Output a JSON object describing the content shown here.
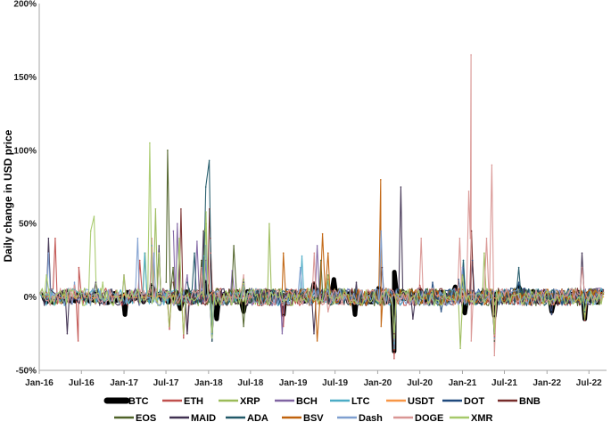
{
  "chart_data": {
    "type": "line",
    "title": "",
    "xlabel": "",
    "ylabel": "Daily change in USD price",
    "y_unit": "percent",
    "ylim": [
      -50,
      200
    ],
    "yticks": [
      -50,
      0,
      50,
      100,
      150,
      200
    ],
    "ytick_labels": [
      "-50%",
      "0%",
      "50%",
      "100%",
      "150%",
      "200%"
    ],
    "xlim": [
      "2016-01-01",
      "2022-09-15"
    ],
    "xticks": [
      "2016-01-01",
      "2016-07-01",
      "2017-01-01",
      "2017-07-01",
      "2018-01-01",
      "2018-07-01",
      "2019-01-01",
      "2019-07-01",
      "2020-01-01",
      "2020-07-01",
      "2021-01-01",
      "2021-07-01",
      "2022-01-01",
      "2022-07-01"
    ],
    "xtick_labels": [
      "Jan-16",
      "Jul-16",
      "Jan-17",
      "Jul-17",
      "Jan-18",
      "Jul-18",
      "Jan-19",
      "Jul-19",
      "Jan-20",
      "Jul-20",
      "Jan-21",
      "Jul-21",
      "Jan-22",
      "Jul-22"
    ],
    "grid": false,
    "legend_position": "bottom",
    "series": [
      {
        "name": "BTC",
        "color": "#000000",
        "x": [
          "2016-01-15",
          "2016-05-01",
          "2016-09-01",
          "2017-01-05",
          "2017-05-01",
          "2017-09-01",
          "2017-12-20",
          "2018-02-05",
          "2018-06-01",
          "2018-11-20",
          "2019-04-01",
          "2019-06-26",
          "2019-09-25",
          "2020-01-05",
          "2020-03-12",
          "2020-03-13",
          "2020-07-01",
          "2020-12-01",
          "2021-01-11",
          "2021-05-19",
          "2021-09-01",
          "2022-01-21",
          "2022-06-13",
          "2022-09-01"
        ],
        "values": [
          2,
          4,
          3,
          -12,
          8,
          -8,
          10,
          -15,
          -10,
          -12,
          9,
          12,
          -12,
          6,
          -37,
          17,
          5,
          7,
          -11,
          -13,
          7,
          -10,
          -15,
          4
        ]
      },
      {
        "name": "ETH",
        "color": "#c0504d",
        "x": [
          "2016-02-01",
          "2016-03-10",
          "2016-06-17",
          "2016-06-20",
          "2016-11-01",
          "2017-03-10",
          "2017-06-01",
          "2017-07-16",
          "2017-09-15",
          "2018-01-10",
          "2018-06-01",
          "2018-11-20",
          "2019-06-01",
          "2020-03-12",
          "2020-07-01",
          "2021-01-05",
          "2021-05-19",
          "2022-01-21",
          "2022-06-13",
          "2022-09-01"
        ],
        "values": [
          3,
          40,
          -30,
          20,
          5,
          25,
          30,
          -22,
          -28,
          30,
          10,
          -20,
          12,
          -42,
          8,
          20,
          -27,
          -12,
          -16,
          4
        ]
      },
      {
        "name": "XRP",
        "color": "#9bbb59",
        "x": [
          "2016-01-10",
          "2016-06-01",
          "2017-01-05",
          "2017-04-02",
          "2017-05-17",
          "2017-07-15",
          "2017-12-14",
          "2017-12-21",
          "2018-01-16",
          "2018-09-20",
          "2019-01-01",
          "2020-03-12",
          "2020-09-01",
          "2020-12-23",
          "2021-04-05",
          "2021-09-01",
          "2022-06-13",
          "2022-09-01"
        ],
        "values": [
          2,
          5,
          3,
          30,
          60,
          -20,
          45,
          50,
          -30,
          50,
          4,
          -30,
          5,
          -35,
          30,
          5,
          -15,
          3
        ]
      },
      {
        "name": "BCH",
        "color": "#8064a2",
        "x": [
          "2017-08-02",
          "2017-08-19",
          "2017-10-01",
          "2017-11-12",
          "2017-12-20",
          "2018-01-16",
          "2018-04-13",
          "2018-11-15",
          "2019-04-15",
          "2019-09-01",
          "2020-03-12",
          "2020-09-01",
          "2021-05-19",
          "2022-09-01"
        ],
        "values": [
          45,
          50,
          15,
          38,
          25,
          -30,
          18,
          -25,
          35,
          5,
          -33,
          5,
          -30,
          3
        ]
      },
      {
        "name": "LTC",
        "color": "#4bacc6",
        "x": [
          "2016-01-05",
          "2016-06-01",
          "2017-03-31",
          "2017-05-01",
          "2017-12-12",
          "2018-01-16",
          "2019-02-08",
          "2019-06-01",
          "2020-03-12",
          "2021-01-05",
          "2021-05-19",
          "2022-09-01"
        ],
        "values": [
          2,
          5,
          30,
          35,
          28,
          -25,
          28,
          15,
          -35,
          25,
          -28,
          3
        ]
      },
      {
        "name": "USDT",
        "color": "#f79646",
        "x": [
          "2016-01-15",
          "2016-07-01",
          "2017-01-01",
          "2017-06-01",
          "2018-01-15",
          "2018-10-15",
          "2019-06-01",
          "2020-03-12",
          "2021-01-01",
          "2022-05-12",
          "2022-09-01"
        ],
        "values": [
          0.5,
          -1,
          2,
          1,
          3,
          5,
          1,
          2,
          0.5,
          1,
          0
        ]
      },
      {
        "name": "DOT",
        "color": "#1f497d",
        "x": [
          "2020-08-20",
          "2020-08-25",
          "2020-10-01",
          "2020-12-15",
          "2021-01-05",
          "2021-02-13",
          "2021-05-19",
          "2021-09-01",
          "2022-01-21",
          "2022-06-13",
          "2022-09-01"
        ],
        "values": [
          3,
          10,
          -10,
          12,
          20,
          25,
          -30,
          10,
          -12,
          -10,
          2
        ]
      },
      {
        "name": "BNB",
        "color": "#772c2a",
        "x": [
          "2017-08-01",
          "2017-09-04",
          "2017-10-01",
          "2018-01-05",
          "2018-01-09",
          "2018-06-01",
          "2019-04-01",
          "2020-03-12",
          "2021-02-09",
          "2021-05-19",
          "2022-09-01"
        ],
        "values": [
          10,
          60,
          -25,
          60,
          40,
          8,
          10,
          -25,
          45,
          -25,
          3
        ]
      },
      {
        "name": "EOS",
        "color": "#4f6228",
        "x": [
          "2017-07-02",
          "2017-07-08",
          "2017-08-01",
          "2017-12-01",
          "2018-04-20",
          "2018-06-01",
          "2019-05-01",
          "2020-03-12",
          "2021-05-19",
          "2022-09-01"
        ],
        "values": [
          10,
          100,
          20,
          25,
          35,
          -20,
          25,
          -30,
          -30,
          3
        ]
      },
      {
        "name": "MAID",
        "color": "#403151",
        "x": [
          "2016-01-05",
          "2016-02-10",
          "2016-05-01",
          "2016-09-01",
          "2017-06-01",
          "2017-10-01",
          "2017-12-10",
          "2018-01-16",
          "2018-06-01",
          "2019-04-01",
          "2019-10-01",
          "2020-01-20",
          "2020-04-10",
          "2020-06-01",
          "2021-01-01",
          "2022-06-01",
          "2022-09-01"
        ],
        "values": [
          3,
          40,
          -25,
          10,
          35,
          -25,
          45,
          -30,
          12,
          -25,
          10,
          20,
          75,
          -15,
          15,
          30,
          5
        ]
      },
      {
        "name": "ADA",
        "color": "#215968",
        "x": [
          "2017-10-01",
          "2017-11-01",
          "2017-12-20",
          "2018-01-04",
          "2018-01-16",
          "2018-06-01",
          "2019-06-01",
          "2020-03-12",
          "2021-01-05",
          "2021-09-01",
          "2022-09-01"
        ],
        "values": [
          10,
          30,
          75,
          93,
          -30,
          10,
          15,
          -30,
          25,
          20,
          3
        ]
      },
      {
        "name": "BSV",
        "color": "#c0620d",
        "x": [
          "2018-11-15",
          "2018-11-20",
          "2019-04-15",
          "2019-05-08",
          "2019-06-01",
          "2020-01-14",
          "2020-01-16",
          "2020-03-12",
          "2021-05-19",
          "2022-09-01"
        ],
        "values": [
          5,
          30,
          -30,
          43,
          30,
          80,
          -20,
          -30,
          -25,
          2
        ]
      },
      {
        "name": "Dash",
        "color": "#7f9fd0",
        "x": [
          "2016-01-05",
          "2016-02-10",
          "2016-06-01",
          "2017-01-01",
          "2017-03-01",
          "2017-05-10",
          "2017-12-20",
          "2018-01-16",
          "2018-06-01",
          "2019-02-01",
          "2020-01-16",
          "2020-03-12",
          "2021-01-01",
          "2022-09-01"
        ],
        "values": [
          3,
          30,
          10,
          15,
          40,
          30,
          35,
          -28,
          8,
          20,
          45,
          -30,
          20,
          3
        ]
      },
      {
        "name": "DOGE",
        "color": "#d99694",
        "x": [
          "2016-01-05",
          "2016-06-01",
          "2017-01-01",
          "2017-05-01",
          "2017-12-01",
          "2018-06-01",
          "2019-04-02",
          "2019-06-01",
          "2020-07-07",
          "2020-09-01",
          "2020-12-20",
          "2021-01-28",
          "2021-02-04",
          "2021-02-07",
          "2021-02-08",
          "2021-04-15",
          "2021-05-08",
          "2021-05-19",
          "2022-06-01",
          "2022-09-01"
        ],
        "values": [
          2,
          8,
          15,
          40,
          20,
          15,
          30,
          -10,
          40,
          5,
          40,
          72,
          40,
          165,
          -30,
          40,
          90,
          -40,
          20,
          3
        ]
      },
      {
        "name": "XMR",
        "color": "#a6c96a",
        "x": [
          "2016-01-05",
          "2016-02-01",
          "2016-08-10",
          "2016-08-25",
          "2016-10-01",
          "2017-01-01",
          "2017-04-22",
          "2017-06-01",
          "2017-08-28",
          "2017-09-15",
          "2017-12-21",
          "2018-01-16",
          "2018-06-01",
          "2019-06-01",
          "2020-03-12",
          "2021-01-01",
          "2021-05-19",
          "2022-06-13",
          "2022-09-01"
        ],
        "values": [
          3,
          15,
          45,
          55,
          10,
          15,
          105,
          30,
          40,
          -25,
          58,
          -28,
          12,
          15,
          -28,
          15,
          -25,
          -12,
          3
        ]
      }
    ]
  }
}
